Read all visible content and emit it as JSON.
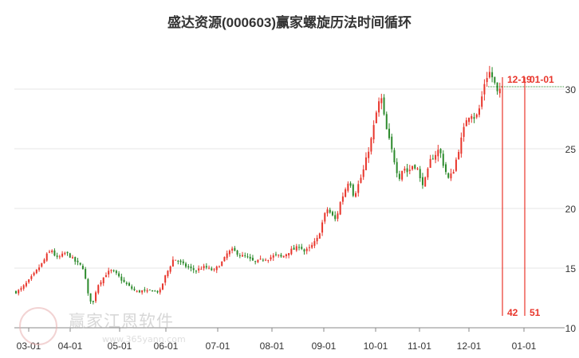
{
  "title": "盛达资源(000603)赢家螺旋历法时间循环",
  "chart_data": {
    "type": "candlestick",
    "x_ticks": [
      "03-01",
      "04-01",
      "05-01",
      "06-01",
      "07-01",
      "08-01",
      "09-01",
      "10-01",
      "11-01",
      "12-01",
      "01-01"
    ],
    "y_ticks": [
      10,
      15,
      20,
      25,
      30
    ],
    "ylim": [
      10,
      33.6
    ],
    "grid": "horizontal",
    "current_price": 30.2,
    "colors": {
      "up": "#e8352b",
      "down": "#2c8a2c",
      "marker": "#e8352b",
      "grid": "#e6e6e6",
      "axis": "#333333"
    },
    "closes": [
      13.0,
      13.2,
      13.6,
      14.0,
      14.5,
      15.0,
      15.5,
      16.2,
      16.5,
      15.8,
      16.0,
      16.3,
      16.0,
      15.6,
      15.3,
      15.0,
      12.8,
      11.9,
      13.5,
      14.0,
      14.5,
      14.8,
      14.6,
      14.2,
      13.8,
      13.5,
      13.2,
      13.0,
      13.1,
      13.0,
      13.2,
      13.0,
      13.1,
      14.2,
      15.0,
      15.8,
      15.6,
      15.3,
      15.1,
      14.9,
      14.8,
      15.0,
      15.1,
      14.9,
      14.8,
      15.2,
      15.6,
      16.3,
      16.5,
      16.3,
      16.0,
      16.0,
      15.7,
      15.5,
      15.6,
      15.8,
      15.8,
      16.0,
      16.1,
      15.9,
      16.2,
      16.5,
      16.6,
      16.9,
      16.4,
      16.6,
      17.0,
      17.5,
      18.8,
      20.0,
      19.5,
      19.0,
      20.5,
      21.5,
      22.5,
      21.0,
      22.0,
      23.0,
      24.5,
      26.0,
      28.0,
      29.5,
      27.0,
      25.5,
      24.0,
      22.5,
      23.5,
      23.0,
      23.6,
      23.5,
      22.0,
      22.5,
      24.0,
      24.5,
      25.0,
      23.5,
      22.5,
      23.0,
      24.5,
      26.0,
      27.5,
      28.0,
      27.5,
      28.5,
      30.5,
      31.5,
      30.8,
      29.5,
      30.2
    ],
    "markers": [
      {
        "date": "12-19",
        "count": "42"
      },
      {
        "date": "01-01",
        "count": "51"
      }
    ]
  },
  "watermark": {
    "brand": "赢家江恩软件",
    "url": "www.365yann.com"
  }
}
